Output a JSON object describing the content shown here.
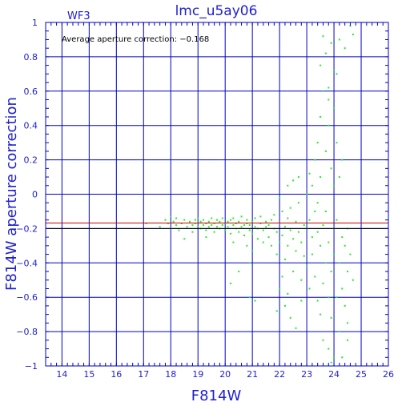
{
  "chart_data": {
    "type": "scatter",
    "title": "lmc_u5ay06",
    "chip_label": "WF3",
    "annotation": "Average aperture correction: −0.168",
    "xlabel": "F814W",
    "ylabel": "F814W aperture correction",
    "xlim": [
      13.4,
      26
    ],
    "ylim": [
      -1,
      1
    ],
    "x_ticks": [
      14,
      15,
      16,
      17,
      18,
      19,
      20,
      21,
      22,
      23,
      24,
      25,
      26
    ],
    "y_ticks": [
      -1,
      -0.8,
      -0.6,
      -0.4,
      -0.2,
      0,
      0.2,
      0.4,
      0.6,
      0.8,
      1
    ],
    "x_tick_labels": [
      "14",
      "15",
      "16",
      "17",
      "18",
      "19",
      "20",
      "21",
      "22",
      "23",
      "24",
      "25",
      "26"
    ],
    "y_tick_labels": [
      "−1",
      "−0.8",
      "−0.6",
      "−0.4",
      "−0.2",
      "0",
      "0.2",
      "0.4",
      "0.6",
      "0.8",
      "1"
    ],
    "grid": true,
    "average_line": -0.168,
    "reference_line": -0.2,
    "colors": {
      "frame": "#0000c8",
      "text": "#2020d0",
      "points": "#22ee22",
      "average_line": "#d00000",
      "reference_line": "#000000"
    },
    "points": [
      [
        17.1,
        -0.17
      ],
      [
        17.6,
        -0.19
      ],
      [
        17.8,
        -0.15
      ],
      [
        17.9,
        -0.17
      ],
      [
        18.0,
        -0.13
      ],
      [
        18.0,
        -0.2
      ],
      [
        18.1,
        -0.16
      ],
      [
        18.2,
        -0.18
      ],
      [
        18.2,
        -0.14
      ],
      [
        18.3,
        -0.21
      ],
      [
        18.4,
        -0.17
      ],
      [
        18.5,
        -0.15
      ],
      [
        18.6,
        -0.19
      ],
      [
        18.7,
        -0.16
      ],
      [
        18.8,
        -0.18
      ],
      [
        18.8,
        -0.22
      ],
      [
        18.9,
        -0.15
      ],
      [
        18.9,
        -0.17
      ],
      [
        19.0,
        -0.19
      ],
      [
        19.0,
        -0.14
      ],
      [
        19.1,
        -0.16
      ],
      [
        19.1,
        -0.2
      ],
      [
        19.2,
        -0.18
      ],
      [
        19.2,
        -0.15
      ],
      [
        19.3,
        -0.17
      ],
      [
        19.3,
        -0.21
      ],
      [
        19.4,
        -0.16
      ],
      [
        19.4,
        -0.19
      ],
      [
        19.5,
        -0.14
      ],
      [
        19.5,
        -0.18
      ],
      [
        19.6,
        -0.17
      ],
      [
        19.6,
        -0.22
      ],
      [
        19.7,
        -0.15
      ],
      [
        19.7,
        -0.19
      ],
      [
        19.8,
        -0.16
      ],
      [
        19.8,
        -0.2
      ],
      [
        19.9,
        -0.18
      ],
      [
        19.9,
        -0.14
      ],
      [
        20.0,
        -0.17
      ],
      [
        20.0,
        -0.21
      ],
      [
        20.1,
        -0.16
      ],
      [
        20.1,
        -0.19
      ],
      [
        20.2,
        -0.15
      ],
      [
        20.2,
        -0.23
      ],
      [
        20.3,
        -0.18
      ],
      [
        20.3,
        -0.14
      ],
      [
        20.4,
        -0.2
      ],
      [
        20.4,
        -0.17
      ],
      [
        20.5,
        -0.16
      ],
      [
        20.5,
        -0.22
      ],
      [
        20.6,
        -0.19
      ],
      [
        20.6,
        -0.13
      ],
      [
        20.7,
        -0.18
      ],
      [
        20.7,
        -0.24
      ],
      [
        20.8,
        -0.17
      ],
      [
        20.8,
        -0.15
      ],
      [
        20.9,
        -0.21
      ],
      [
        20.9,
        -0.18
      ],
      [
        21.0,
        -0.16
      ],
      [
        21.0,
        -0.23
      ],
      [
        21.1,
        -0.19
      ],
      [
        21.1,
        -0.14
      ],
      [
        21.2,
        -0.2
      ],
      [
        21.2,
        -0.26
      ],
      [
        21.3,
        -0.17
      ],
      [
        21.3,
        -0.13
      ],
      [
        21.4,
        -0.21
      ],
      [
        21.4,
        -0.28
      ],
      [
        21.5,
        -0.16
      ],
      [
        21.5,
        -0.19
      ],
      [
        18.5,
        -0.26
      ],
      [
        19.3,
        -0.25
      ],
      [
        20.3,
        -0.28
      ],
      [
        20.8,
        -0.3
      ],
      [
        21.0,
        -0.33
      ],
      [
        20.9,
        -0.4
      ],
      [
        20.5,
        -0.45
      ],
      [
        20.2,
        -0.52
      ],
      [
        20.9,
        -0.6
      ],
      [
        21.1,
        -0.62
      ],
      [
        21.6,
        -0.18
      ],
      [
        21.6,
        -0.25
      ],
      [
        21.7,
        -0.15
      ],
      [
        21.7,
        -0.3
      ],
      [
        21.8,
        -0.2
      ],
      [
        21.8,
        -0.12
      ],
      [
        21.9,
        -0.22
      ],
      [
        21.9,
        -0.35
      ],
      [
        22.0,
        -0.17
      ],
      [
        22.0,
        -0.28
      ],
      [
        22.1,
        -0.1
      ],
      [
        22.1,
        -0.24
      ],
      [
        22.2,
        -0.19
      ],
      [
        22.2,
        -0.38
      ],
      [
        22.3,
        -0.14
      ],
      [
        22.3,
        -0.3
      ],
      [
        22.4,
        -0.21
      ],
      [
        22.4,
        -0.08
      ],
      [
        22.5,
        -0.26
      ],
      [
        22.5,
        -0.45
      ],
      [
        22.6,
        -0.16
      ],
      [
        22.6,
        -0.33
      ],
      [
        22.7,
        -0.22
      ],
      [
        22.7,
        -0.05
      ],
      [
        22.8,
        -0.28
      ],
      [
        22.8,
        -0.5
      ],
      [
        22.9,
        -0.18
      ],
      [
        22.9,
        -0.36
      ],
      [
        22.0,
        -0.55
      ],
      [
        22.2,
        -0.65
      ],
      [
        22.4,
        -0.72
      ],
      [
        22.6,
        -0.78
      ],
      [
        22.8,
        -0.62
      ],
      [
        22.1,
        -0.48
      ],
      [
        22.3,
        0.05
      ],
      [
        22.0,
        -0.02
      ],
      [
        22.5,
        0.08
      ],
      [
        22.7,
        0.1
      ],
      [
        21.9,
        -0.68
      ],
      [
        22.3,
        -0.58
      ],
      [
        23.0,
        -0.2
      ],
      [
        23.0,
        -0.42
      ],
      [
        23.0,
        0.0
      ],
      [
        23.1,
        -0.15
      ],
      [
        23.1,
        -0.55
      ],
      [
        23.1,
        0.12
      ],
      [
        23.2,
        -0.25
      ],
      [
        23.2,
        -0.35
      ],
      [
        23.2,
        0.05
      ],
      [
        23.3,
        -0.1
      ],
      [
        23.3,
        -0.48
      ],
      [
        23.3,
        0.2
      ],
      [
        23.4,
        -0.22
      ],
      [
        23.4,
        -0.62
      ],
      [
        23.4,
        0.3
      ],
      [
        23.4,
        -0.05
      ],
      [
        23.5,
        -0.3
      ],
      [
        23.5,
        -0.7
      ],
      [
        23.5,
        0.45
      ],
      [
        23.5,
        0.1
      ],
      [
        23.5,
        0.75
      ],
      [
        23.6,
        -0.18
      ],
      [
        23.6,
        -0.52
      ],
      [
        23.6,
        0.6
      ],
      [
        23.6,
        -0.85
      ],
      [
        23.7,
        -0.4
      ],
      [
        23.7,
        0.25
      ],
      [
        23.7,
        0.82
      ],
      [
        23.7,
        -0.1
      ],
      [
        23.8,
        -0.6
      ],
      [
        23.8,
        0.4
      ],
      [
        23.8,
        0.62
      ],
      [
        23.8,
        -0.28
      ],
      [
        23.8,
        -0.9
      ],
      [
        23.9,
        0.15
      ],
      [
        23.9,
        -0.45
      ],
      [
        23.9,
        0.88
      ],
      [
        23.9,
        -0.72
      ],
      [
        24.0,
        -0.2
      ],
      [
        24.0,
        0.5
      ],
      [
        24.0,
        -0.95
      ],
      [
        24.0,
        0.05
      ],
      [
        24.0,
        -0.35
      ],
      [
        24.1,
        0.3
      ],
      [
        24.1,
        -0.6
      ],
      [
        24.1,
        0.7
      ],
      [
        24.1,
        -0.15
      ],
      [
        24.2,
        -0.4
      ],
      [
        24.2,
        0.1
      ],
      [
        24.2,
        -0.8
      ],
      [
        24.2,
        0.9
      ],
      [
        24.3,
        -0.25
      ],
      [
        24.3,
        -0.55
      ],
      [
        24.3,
        0.2
      ],
      [
        24.4,
        -0.3
      ],
      [
        24.4,
        -0.65
      ],
      [
        24.4,
        0.85
      ],
      [
        24.5,
        -0.2
      ],
      [
        24.5,
        -0.45
      ],
      [
        24.6,
        -0.35
      ],
      [
        24.6,
        0.98
      ],
      [
        24.7,
        -0.5
      ],
      [
        24.7,
        0.93
      ],
      [
        24.5,
        -0.75
      ],
      [
        24.3,
        -0.95
      ],
      [
        24.5,
        -0.85
      ],
      [
        23.9,
        -0.98
      ],
      [
        23.6,
        0.92
      ],
      [
        23.8,
        0.55
      ],
      [
        24.0,
        0.72
      ]
    ]
  }
}
